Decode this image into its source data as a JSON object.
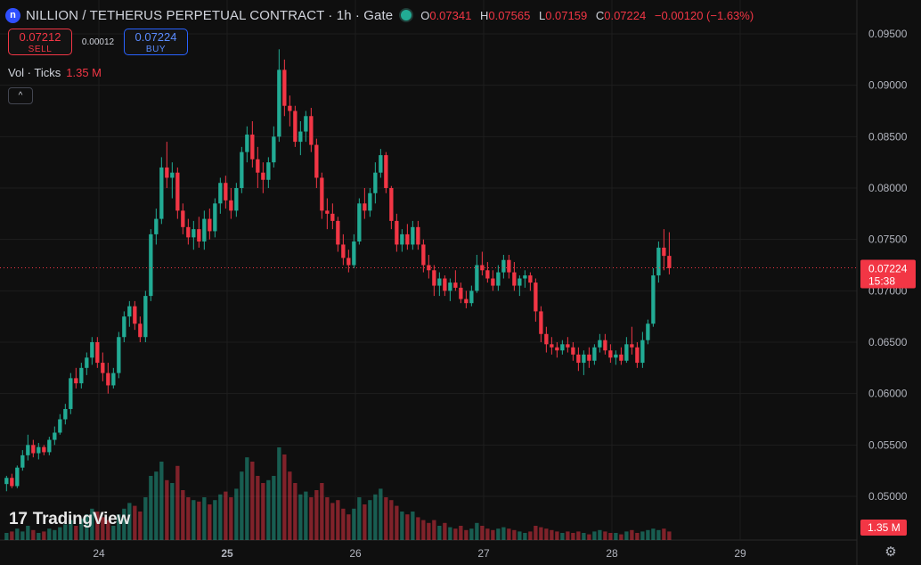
{
  "header": {
    "logo_letter": "n",
    "title": "NILLION / TETHERUS PERPETUAL CONTRACT · 1h · Gate",
    "ohlc": {
      "o_label": "O",
      "o": "0.07341",
      "h_label": "H",
      "h": "0.07565",
      "l_label": "L",
      "l": "0.07159",
      "c_label": "C",
      "c": "0.07224",
      "change": "−0.00120 (−1.63%)"
    }
  },
  "trade": {
    "sell_price": "0.07212",
    "sell_label": "SELL",
    "spread": "0.00012",
    "buy_price": "0.07224",
    "buy_label": "BUY"
  },
  "volume_legend": {
    "label": "Vol · Ticks",
    "value": "1.35 M"
  },
  "collapse_glyph": "^",
  "branding": {
    "mark": "17",
    "name": "TradingView"
  },
  "colors": {
    "up": "#22ab94",
    "down": "#f23645",
    "background": "#0f0f0f",
    "grid": "#1e1e1e"
  },
  "chart_data": {
    "type": "candlestick",
    "interval": "1h",
    "y_axis_ticks": [
      "0.09500",
      "0.09000",
      "0.08500",
      "0.08000",
      "0.07500",
      "0.07000",
      "0.06500",
      "0.06000",
      "0.05500",
      "0.05000"
    ],
    "ylim": [
      0.0475,
      0.0965
    ],
    "x_axis_ticks": [
      "24",
      "25",
      "26",
      "27",
      "28",
      "29"
    ],
    "x_tick_positions": [
      0,
      1,
      2,
      3,
      4,
      5
    ],
    "last_price": {
      "value": "0.07224",
      "countdown": "15:38"
    },
    "volume_last_label": "1.35 M",
    "series": {
      "candles_days_since_24": {
        "t_start": -0.72,
        "t_step": 0.04167,
        "ohlc": [
          [
            0.0512,
            0.052,
            0.0505,
            0.0518
          ],
          [
            0.0518,
            0.0522,
            0.0508,
            0.051
          ],
          [
            0.051,
            0.053,
            0.0508,
            0.0528
          ],
          [
            0.0528,
            0.0545,
            0.0525,
            0.054
          ],
          [
            0.054,
            0.056,
            0.0535,
            0.055
          ],
          [
            0.055,
            0.0555,
            0.0538,
            0.0542
          ],
          [
            0.0542,
            0.0552,
            0.0536,
            0.0548
          ],
          [
            0.0548,
            0.055,
            0.054,
            0.0543
          ],
          [
            0.0543,
            0.0558,
            0.054,
            0.0555
          ],
          [
            0.0555,
            0.0568,
            0.055,
            0.0562
          ],
          [
            0.0562,
            0.058,
            0.056,
            0.0575
          ],
          [
            0.0575,
            0.059,
            0.057,
            0.0585
          ],
          [
            0.0585,
            0.062,
            0.058,
            0.0615
          ],
          [
            0.0615,
            0.0625,
            0.0605,
            0.061
          ],
          [
            0.061,
            0.063,
            0.0605,
            0.0625
          ],
          [
            0.0625,
            0.064,
            0.0618,
            0.0635
          ],
          [
            0.0635,
            0.0655,
            0.0628,
            0.065
          ],
          [
            0.065,
            0.0655,
            0.0625,
            0.063
          ],
          [
            0.063,
            0.064,
            0.0612,
            0.062
          ],
          [
            0.062,
            0.063,
            0.06,
            0.0608
          ],
          [
            0.0608,
            0.0625,
            0.0605,
            0.062
          ],
          [
            0.062,
            0.066,
            0.0615,
            0.0655
          ],
          [
            0.0655,
            0.068,
            0.065,
            0.0675
          ],
          [
            0.0675,
            0.069,
            0.0665,
            0.0685
          ],
          [
            0.0685,
            0.069,
            0.0662,
            0.0668
          ],
          [
            0.0668,
            0.0675,
            0.065,
            0.0655
          ],
          [
            0.0655,
            0.07,
            0.065,
            0.0695
          ],
          [
            0.0695,
            0.076,
            0.069,
            0.0755
          ],
          [
            0.0755,
            0.078,
            0.0745,
            0.077
          ],
          [
            0.077,
            0.083,
            0.0765,
            0.082
          ],
          [
            0.082,
            0.0845,
            0.08,
            0.081
          ],
          [
            0.081,
            0.0825,
            0.079,
            0.0815
          ],
          [
            0.0815,
            0.082,
            0.077,
            0.0778
          ],
          [
            0.0778,
            0.0785,
            0.0755,
            0.0762
          ],
          [
            0.0762,
            0.077,
            0.0745,
            0.0752
          ],
          [
            0.0752,
            0.0768,
            0.074,
            0.076
          ],
          [
            0.076,
            0.0772,
            0.0742,
            0.0748
          ],
          [
            0.0748,
            0.0778,
            0.074,
            0.077
          ],
          [
            0.077,
            0.078,
            0.075,
            0.0758
          ],
          [
            0.0758,
            0.079,
            0.0752,
            0.0785
          ],
          [
            0.0785,
            0.081,
            0.0775,
            0.0805
          ],
          [
            0.0805,
            0.0812,
            0.078,
            0.0788
          ],
          [
            0.0788,
            0.08,
            0.077,
            0.0778
          ],
          [
            0.0778,
            0.0805,
            0.0772,
            0.08
          ],
          [
            0.08,
            0.084,
            0.0795,
            0.0835
          ],
          [
            0.0835,
            0.086,
            0.0825,
            0.0852
          ],
          [
            0.0852,
            0.0865,
            0.082,
            0.0828
          ],
          [
            0.0828,
            0.084,
            0.08,
            0.0815
          ],
          [
            0.0815,
            0.0825,
            0.0795,
            0.0808
          ],
          [
            0.0808,
            0.083,
            0.08,
            0.0825
          ],
          [
            0.0825,
            0.086,
            0.082,
            0.085
          ],
          [
            0.085,
            0.0935,
            0.0845,
            0.0915
          ],
          [
            0.0915,
            0.0925,
            0.087,
            0.088
          ],
          [
            0.088,
            0.089,
            0.086,
            0.0875
          ],
          [
            0.0875,
            0.088,
            0.084,
            0.0845
          ],
          [
            0.0845,
            0.0865,
            0.0832,
            0.0855
          ],
          [
            0.0855,
            0.0875,
            0.0845,
            0.087
          ],
          [
            0.087,
            0.0878,
            0.0835,
            0.0842
          ],
          [
            0.0842,
            0.0848,
            0.08,
            0.081
          ],
          [
            0.081,
            0.0815,
            0.077,
            0.0778
          ],
          [
            0.0778,
            0.079,
            0.076,
            0.0775
          ],
          [
            0.0775,
            0.0785,
            0.076,
            0.0768
          ],
          [
            0.0768,
            0.0772,
            0.0738,
            0.0745
          ],
          [
            0.0745,
            0.0755,
            0.0725,
            0.0732
          ],
          [
            0.0732,
            0.074,
            0.0718,
            0.0725
          ],
          [
            0.0725,
            0.0755,
            0.0722,
            0.0748
          ],
          [
            0.0748,
            0.079,
            0.0745,
            0.0785
          ],
          [
            0.0785,
            0.08,
            0.077,
            0.0778
          ],
          [
            0.0778,
            0.08,
            0.0772,
            0.0795
          ],
          [
            0.0795,
            0.0825,
            0.0785,
            0.0815
          ],
          [
            0.0815,
            0.0838,
            0.081,
            0.0832
          ],
          [
            0.0832,
            0.0835,
            0.0795,
            0.08
          ],
          [
            0.08,
            0.0802,
            0.076,
            0.0768
          ],
          [
            0.0768,
            0.0775,
            0.0738,
            0.0745
          ],
          [
            0.0745,
            0.076,
            0.0738,
            0.0755
          ],
          [
            0.0755,
            0.0765,
            0.074,
            0.0745
          ],
          [
            0.0745,
            0.0768,
            0.074,
            0.0762
          ],
          [
            0.0762,
            0.0768,
            0.074,
            0.0745
          ],
          [
            0.0745,
            0.075,
            0.0718,
            0.0725
          ],
          [
            0.0725,
            0.0735,
            0.0712,
            0.072
          ],
          [
            0.072,
            0.0725,
            0.0695,
            0.0705
          ],
          [
            0.0705,
            0.0718,
            0.0695,
            0.0712
          ],
          [
            0.0712,
            0.0715,
            0.0695,
            0.07
          ],
          [
            0.07,
            0.0712,
            0.069,
            0.0708
          ],
          [
            0.0708,
            0.072,
            0.07,
            0.0703
          ],
          [
            0.0703,
            0.0708,
            0.0688,
            0.0692
          ],
          [
            0.0692,
            0.07,
            0.0683,
            0.0688
          ],
          [
            0.0688,
            0.0705,
            0.0685,
            0.07
          ],
          [
            0.07,
            0.0735,
            0.0698,
            0.0725
          ],
          [
            0.0725,
            0.0738,
            0.0715,
            0.072
          ],
          [
            0.072,
            0.0728,
            0.0708,
            0.0712
          ],
          [
            0.0712,
            0.072,
            0.07,
            0.0705
          ],
          [
            0.0705,
            0.0725,
            0.07,
            0.0718
          ],
          [
            0.0718,
            0.0735,
            0.0712,
            0.073
          ],
          [
            0.073,
            0.0735,
            0.0712,
            0.0718
          ],
          [
            0.0718,
            0.0728,
            0.07,
            0.0705
          ],
          [
            0.0705,
            0.0715,
            0.0695,
            0.0712
          ],
          [
            0.0712,
            0.072,
            0.0703,
            0.0715
          ],
          [
            0.0715,
            0.0718,
            0.07,
            0.0708
          ],
          [
            0.0708,
            0.0712,
            0.067,
            0.068
          ],
          [
            0.068,
            0.0685,
            0.065,
            0.0658
          ],
          [
            0.0658,
            0.0665,
            0.064,
            0.0648
          ],
          [
            0.0648,
            0.0655,
            0.0638,
            0.0645
          ],
          [
            0.0645,
            0.065,
            0.0635,
            0.0642
          ],
          [
            0.0642,
            0.0652,
            0.0638,
            0.0648
          ],
          [
            0.0648,
            0.0655,
            0.064,
            0.0645
          ],
          [
            0.0645,
            0.065,
            0.0632,
            0.0638
          ],
          [
            0.0638,
            0.0645,
            0.0622,
            0.063
          ],
          [
            0.063,
            0.0642,
            0.0618,
            0.0638
          ],
          [
            0.0638,
            0.0645,
            0.0625,
            0.0632
          ],
          [
            0.0632,
            0.0648,
            0.0628,
            0.0645
          ],
          [
            0.0645,
            0.0658,
            0.064,
            0.0652
          ],
          [
            0.0652,
            0.0658,
            0.0638,
            0.0642
          ],
          [
            0.0642,
            0.0648,
            0.063,
            0.0635
          ],
          [
            0.0635,
            0.0642,
            0.0628,
            0.0638
          ],
          [
            0.0638,
            0.0645,
            0.0628,
            0.0632
          ],
          [
            0.0632,
            0.0655,
            0.063,
            0.0648
          ],
          [
            0.0648,
            0.0665,
            0.0638,
            0.0645
          ],
          [
            0.0645,
            0.065,
            0.0625,
            0.063
          ],
          [
            0.063,
            0.066,
            0.0625,
            0.0652
          ],
          [
            0.0652,
            0.0672,
            0.0648,
            0.0668
          ],
          [
            0.0668,
            0.0722,
            0.0665,
            0.0715
          ],
          [
            0.0715,
            0.0748,
            0.0708,
            0.0742
          ],
          [
            0.0742,
            0.076,
            0.072,
            0.0734
          ],
          [
            0.0734,
            0.0757,
            0.0716,
            0.0722
          ]
        ],
        "volume": [
          0.05,
          0.06,
          0.08,
          0.06,
          0.1,
          0.07,
          0.05,
          0.06,
          0.08,
          0.07,
          0.09,
          0.11,
          0.14,
          0.1,
          0.15,
          0.18,
          0.22,
          0.2,
          0.16,
          0.14,
          0.1,
          0.18,
          0.22,
          0.26,
          0.24,
          0.2,
          0.3,
          0.45,
          0.48,
          0.55,
          0.42,
          0.4,
          0.52,
          0.35,
          0.3,
          0.28,
          0.27,
          0.3,
          0.25,
          0.28,
          0.32,
          0.34,
          0.3,
          0.36,
          0.48,
          0.58,
          0.55,
          0.45,
          0.4,
          0.42,
          0.45,
          0.65,
          0.6,
          0.48,
          0.4,
          0.32,
          0.34,
          0.3,
          0.35,
          0.4,
          0.3,
          0.26,
          0.28,
          0.22,
          0.18,
          0.22,
          0.3,
          0.25,
          0.28,
          0.32,
          0.36,
          0.3,
          0.28,
          0.24,
          0.2,
          0.18,
          0.2,
          0.16,
          0.14,
          0.12,
          0.14,
          0.1,
          0.12,
          0.09,
          0.08,
          0.1,
          0.07,
          0.08,
          0.12,
          0.1,
          0.08,
          0.07,
          0.08,
          0.09,
          0.08,
          0.07,
          0.06,
          0.05,
          0.06,
          0.1,
          0.09,
          0.08,
          0.07,
          0.06,
          0.05,
          0.06,
          0.05,
          0.06,
          0.05,
          0.04,
          0.06,
          0.07,
          0.06,
          0.05,
          0.05,
          0.04,
          0.06,
          0.07,
          0.05,
          0.06,
          0.07,
          0.08,
          0.07,
          0.08,
          0.06
        ]
      }
    }
  }
}
